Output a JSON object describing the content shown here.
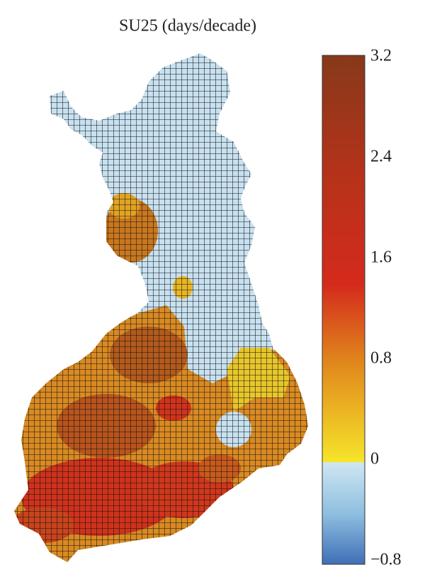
{
  "title": "SU25 (days/decade)",
  "colorbar": {
    "lim": [
      -0.8,
      3.2
    ],
    "ticks": [
      {
        "value": -0.8,
        "label": "−0.8"
      },
      0,
      0.8,
      1.6,
      2.4,
      3.2
    ]
  }
}
